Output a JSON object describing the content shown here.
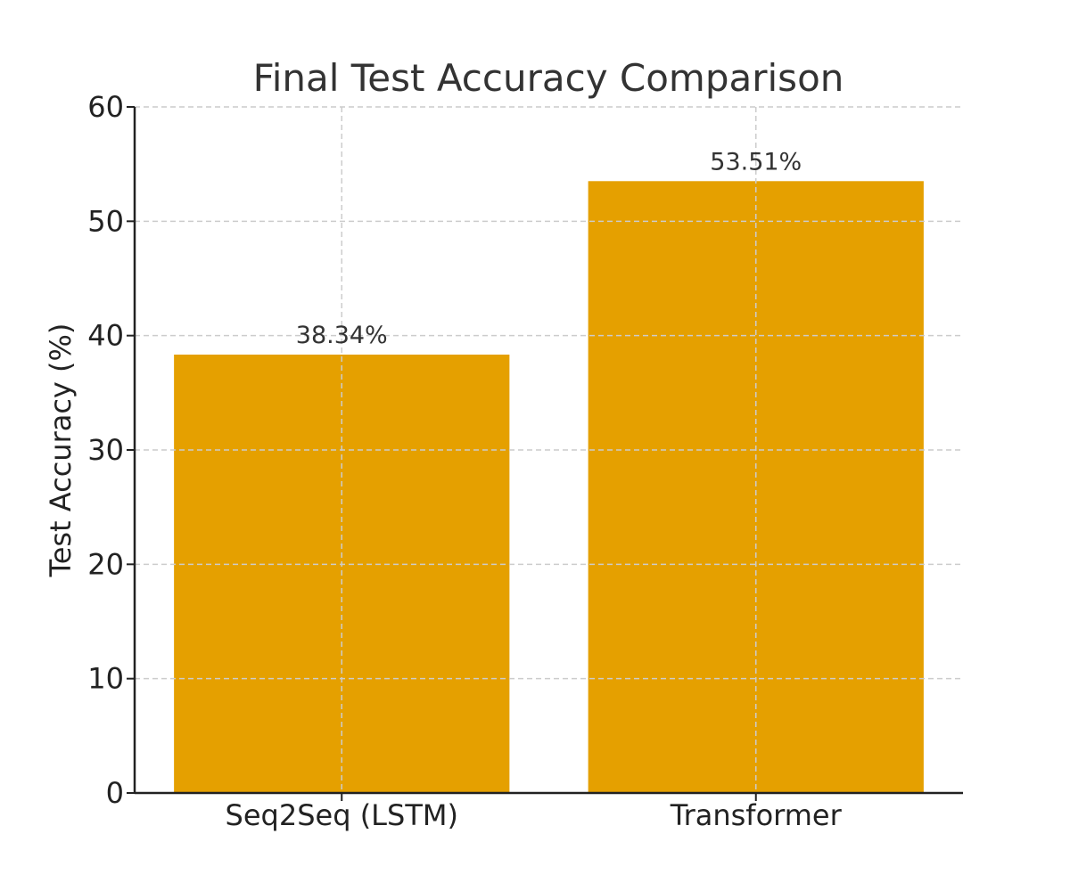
{
  "chart_data": {
    "type": "bar",
    "title": "Final Test Accuracy Comparison",
    "xlabel": "",
    "ylabel": "Test Accuracy (%)",
    "categories": [
      "Seq2Seq (LSTM)",
      "Transformer"
    ],
    "values": [
      38.34,
      53.51
    ],
    "data_labels": [
      "38.34%",
      "53.51%"
    ],
    "ylim": [
      0,
      60
    ],
    "yticks": [
      0,
      10,
      20,
      30,
      40,
      50,
      60
    ],
    "ytick_labels": [
      "0",
      "10",
      "20",
      "30",
      "40",
      "50",
      "60"
    ],
    "grid": true,
    "bar_color": "#e5a000"
  }
}
